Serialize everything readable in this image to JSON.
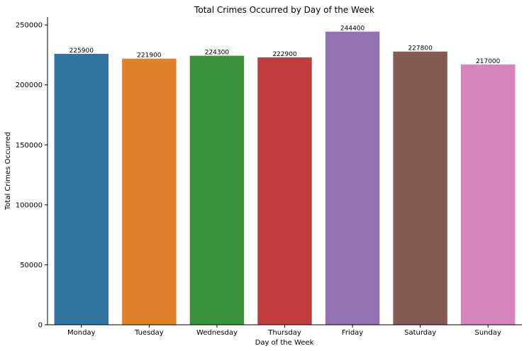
{
  "chart_data": {
    "type": "bar",
    "title": "Total Crimes Occurred by Day of the Week",
    "xlabel": "Day of the Week",
    "ylabel": "Total Crimes Occurred",
    "categories": [
      "Monday",
      "Tuesday",
      "Wednesday",
      "Thursday",
      "Friday",
      "Saturday",
      "Sunday"
    ],
    "values": [
      225900,
      221900,
      224300,
      222900,
      244400,
      227800,
      217000
    ],
    "data_labels": [
      "225900",
      "221900",
      "224300",
      "222900",
      "244400",
      "227800",
      "217000"
    ],
    "colors": [
      "#3274a1",
      "#e1812c",
      "#3a923a",
      "#c03d3e",
      "#9372b2",
      "#845b53",
      "#d684bd"
    ],
    "ylim": [
      0,
      256600
    ],
    "yticks": [
      0,
      50000,
      100000,
      150000,
      200000,
      250000
    ],
    "ytick_labels": [
      "0",
      "50000",
      "100000",
      "150000",
      "200000",
      "250000"
    ],
    "grid": false,
    "legend": "none"
  }
}
